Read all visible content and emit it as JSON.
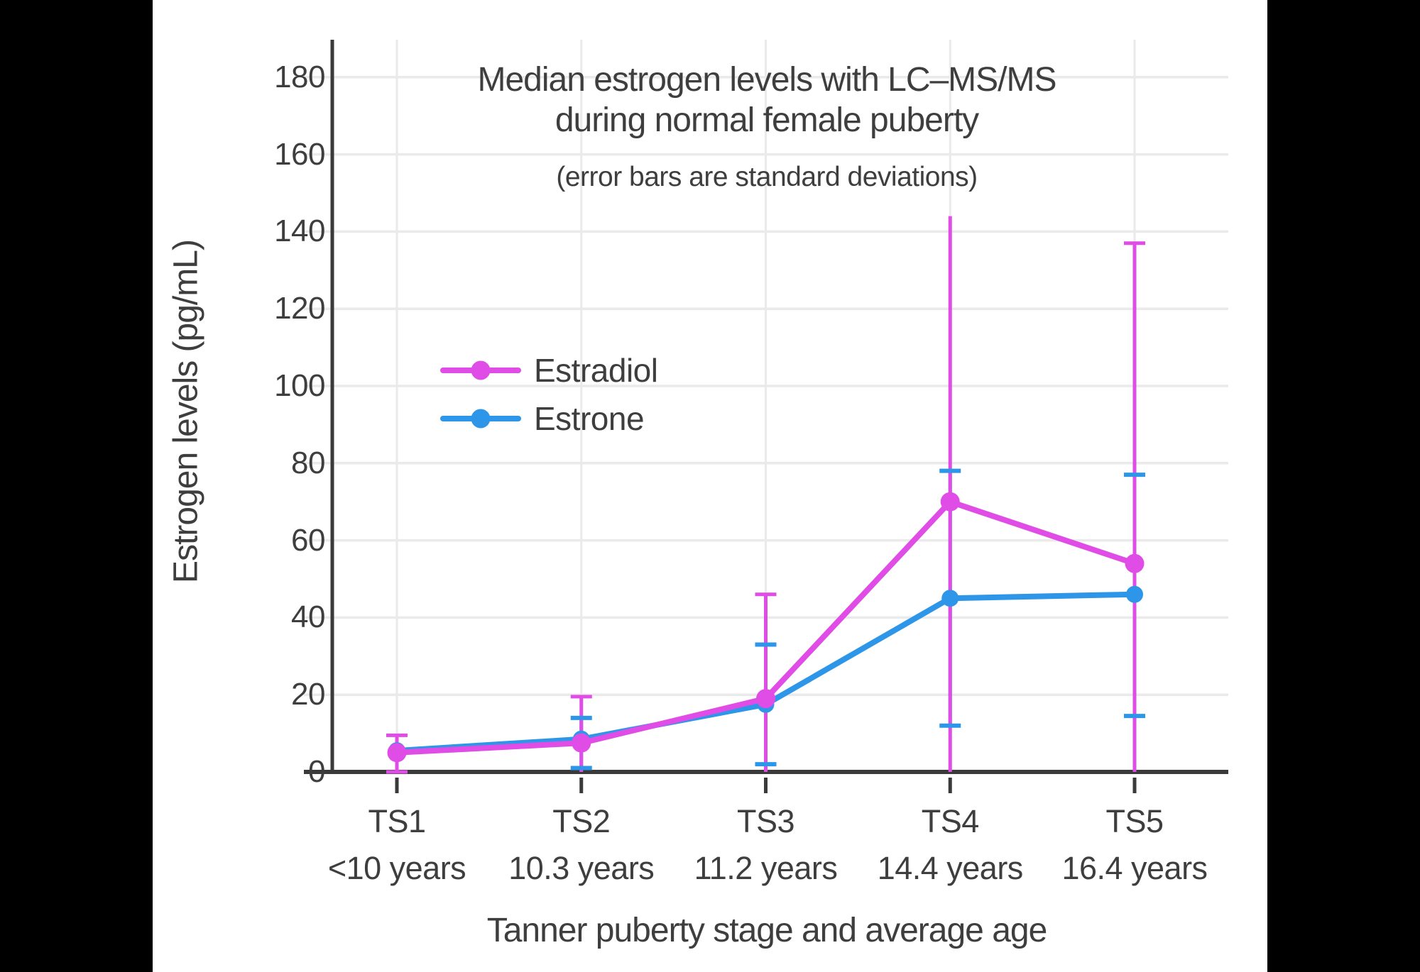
{
  "window": {
    "background": "#000000",
    "panel_background": "#ffffff"
  },
  "title": {
    "line1": "Median estrogen levels with LC–MS/MS",
    "line2": "during normal female puberty"
  },
  "subtitle": "(error bars are standard deviations)",
  "y_axis": {
    "label": "Estrogen levels (pg/mL)",
    "tick_labels": [
      "0",
      "20",
      "40",
      "60",
      "80",
      "100",
      "120",
      "140",
      "160",
      "180"
    ]
  },
  "x_axis": {
    "label": "Tanner puberty stage and average age",
    "stages": [
      "TS1",
      "TS2",
      "TS3",
      "TS4",
      "TS5"
    ],
    "ages": [
      "<10 years",
      "10.3 years",
      "11.2 years",
      "14.4 years",
      "16.4 years"
    ]
  },
  "legend": {
    "items": [
      {
        "label": "Estradiol",
        "color": "#E04DE6"
      },
      {
        "label": "Estrone",
        "color": "#2D96E8"
      }
    ]
  },
  "colors": {
    "grid": "#EAEAEA",
    "axis": "#3A3A3A",
    "text": "#3E3E3E",
    "estradiol": "#E04DE6",
    "estrone": "#2D96E8"
  },
  "chart_data": {
    "type": "line",
    "title": "Median estrogen levels with LC–MS/MS during normal female puberty",
    "subtitle": "(error bars are standard deviations)",
    "xlabel": "Tanner puberty stage and average age",
    "ylabel": "Estrogen levels (pg/mL)",
    "categories": [
      "TS1",
      "TS2",
      "TS3",
      "TS4",
      "TS5"
    ],
    "category_ages": [
      "<10 years",
      "10.3 years",
      "11.2 years",
      "14.4 years",
      "16.4 years"
    ],
    "y_ticks": [
      0,
      20,
      40,
      60,
      80,
      100,
      120,
      140,
      160,
      180
    ],
    "ylim": [
      0,
      190
    ],
    "grid": true,
    "legend_position": "inside-upper-left",
    "error_bars": "standard deviations, clipped at 0",
    "series": [
      {
        "name": "Estradiol",
        "color": "#E04DE6",
        "values": [
          5,
          7.5,
          19,
          70,
          54
        ],
        "error_low": [
          0,
          0,
          0,
          0,
          0
        ],
        "error_high": [
          9.5,
          19.5,
          46,
          144,
          137
        ],
        "cap_low": [
          true,
          false,
          false,
          false,
          false
        ],
        "cap_high": [
          true,
          true,
          true,
          false,
          true
        ]
      },
      {
        "name": "Estrone",
        "color": "#2D96E8",
        "values": [
          5.5,
          8.5,
          17.5,
          45,
          46
        ],
        "error_low": [
          null,
          1,
          2,
          12,
          14.5
        ],
        "error_high": [
          null,
          14,
          33,
          78,
          77
        ],
        "cap_low": [
          false,
          true,
          true,
          true,
          true
        ],
        "cap_high": [
          false,
          true,
          true,
          true,
          true
        ]
      }
    ]
  }
}
